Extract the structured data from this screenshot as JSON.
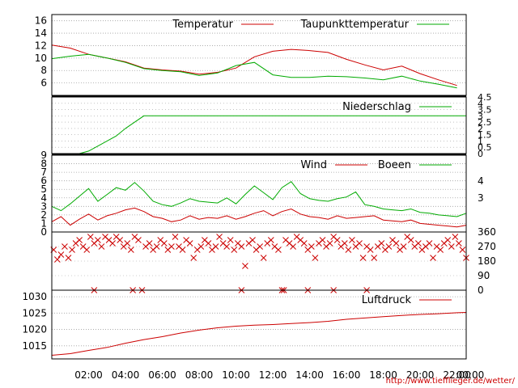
{
  "colors": {
    "red": "#cc0000",
    "green": "#00aa00",
    "frame": "#000000",
    "grid": "#a0a0a0"
  },
  "credit": "http://www.tiefflieger.de/wetter/",
  "x_axis": {
    "labels": [
      "02:00",
      "04:00",
      "06:00",
      "08:00",
      "10:00",
      "12:00",
      "14:00",
      "16:00",
      "18:00",
      "20:00",
      "22:00",
      "00:00"
    ]
  },
  "chart_data": [
    {
      "type": "line",
      "panel": "temperature",
      "ylim": [
        4,
        17
      ],
      "y_ticks": [
        "16",
        "14",
        "12",
        "10",
        "8",
        "6"
      ],
      "x_unit": "hours",
      "x": [
        0,
        1,
        2,
        3,
        4,
        5,
        6,
        7,
        8,
        9,
        10,
        11,
        12,
        13,
        14,
        15,
        16,
        17,
        18,
        19,
        20,
        21,
        22
      ],
      "series": [
        {
          "name": "Temperatur",
          "color": "red",
          "values": [
            12.1,
            11.6,
            10.6,
            10.0,
            9.4,
            8.4,
            8.1,
            7.9,
            7.4,
            7.7,
            8.4,
            10.2,
            11.1,
            11.4,
            11.2,
            10.9,
            9.8,
            8.9,
            8.1,
            8.7,
            7.5,
            6.5,
            5.6
          ]
        },
        {
          "name": "Taupunkttemperatur",
          "color": "green",
          "values": [
            9.9,
            10.3,
            10.6,
            10.0,
            9.3,
            8.3,
            8.0,
            7.8,
            7.2,
            7.6,
            8.8,
            9.3,
            7.3,
            6.9,
            6.9,
            7.1,
            7.0,
            6.8,
            6.5,
            7.1,
            6.3,
            5.8,
            5.2
          ]
        }
      ]
    },
    {
      "type": "line",
      "panel": "precipitation",
      "ylim": [
        0,
        4.5
      ],
      "y_ticks": [
        "4.5",
        "4",
        "3.5",
        "3",
        "2.5",
        "2",
        "1.5",
        "1",
        "0.5",
        "0"
      ],
      "x": [
        0,
        1.5,
        2,
        2.5,
        3,
        3.5,
        4,
        4.5,
        5,
        22.5
      ],
      "series": [
        {
          "name": "Niederschlag",
          "color": "green",
          "values": [
            0,
            0,
            0.2,
            0.6,
            1.0,
            1.4,
            2.0,
            2.5,
            3.0,
            3.0
          ]
        }
      ]
    },
    {
      "type": "line",
      "panel": "wind",
      "ylim": [
        0,
        9
      ],
      "y_ticks": [
        "9",
        "8",
        "7",
        "6",
        "5",
        "4",
        "3",
        "2",
        "1",
        "0"
      ],
      "y_ticks_right": [
        "4",
        "3"
      ],
      "x": [
        0,
        0.5,
        1,
        1.5,
        2,
        2.5,
        3,
        3.5,
        4,
        4.5,
        5,
        5.5,
        6,
        6.5,
        7,
        7.5,
        8,
        8.5,
        9,
        9.5,
        10,
        10.5,
        11,
        11.5,
        12,
        12.5,
        13,
        13.5,
        14,
        14.5,
        15,
        15.5,
        16,
        16.5,
        17,
        17.5,
        18,
        18.5,
        19,
        19.5,
        20,
        20.5,
        21,
        21.5,
        22,
        22.5
      ],
      "series": [
        {
          "name": "Wind",
          "color": "red",
          "values": [
            1.2,
            1.8,
            0.8,
            1.5,
            2.1,
            1.4,
            1.9,
            2.2,
            2.6,
            2.8,
            2.4,
            1.8,
            1.6,
            1.2,
            1.4,
            1.9,
            1.5,
            1.7,
            1.6,
            1.9,
            1.5,
            1.8,
            2.2,
            2.5,
            1.9,
            2.4,
            2.7,
            2.1,
            1.8,
            1.7,
            1.5,
            1.9,
            1.6,
            1.7,
            1.8,
            1.9,
            1.4,
            1.3,
            1.2,
            1.4,
            1.0,
            0.9,
            0.8,
            0.7,
            0.6,
            0.8
          ]
        },
        {
          "name": "Boeen",
          "color": "green",
          "values": [
            3.0,
            2.5,
            3.3,
            4.2,
            5.1,
            3.6,
            4.4,
            5.2,
            4.9,
            5.8,
            4.8,
            3.6,
            3.2,
            3.0,
            3.4,
            3.9,
            3.6,
            3.5,
            3.4,
            4.0,
            3.3,
            4.4,
            5.4,
            4.6,
            3.8,
            5.2,
            5.9,
            4.5,
            3.9,
            3.7,
            3.6,
            3.9,
            4.1,
            4.7,
            3.2,
            3.0,
            2.7,
            2.6,
            2.5,
            2.7,
            2.3,
            2.2,
            2.0,
            1.9,
            1.8,
            2.2
          ]
        }
      ]
    },
    {
      "type": "scatter",
      "panel": "wind-direction",
      "ylim": [
        0,
        360
      ],
      "y_ticks": [
        "360",
        "270",
        "180",
        "90",
        "0"
      ],
      "marker": "x",
      "series": [
        {
          "name": "",
          "color": "red",
          "points": [
            [
              0.1,
              250
            ],
            [
              0.3,
              190
            ],
            [
              0.5,
              220
            ],
            [
              0.7,
              270
            ],
            [
              0.9,
              200
            ],
            [
              1.1,
              250
            ],
            [
              1.3,
              290
            ],
            [
              1.5,
              310
            ],
            [
              1.7,
              270
            ],
            [
              1.9,
              250
            ],
            [
              2.1,
              330
            ],
            [
              2.3,
              290
            ],
            [
              2.5,
              310
            ],
            [
              2.7,
              270
            ],
            [
              2.9,
              330
            ],
            [
              3.1,
              310
            ],
            [
              3.3,
              290
            ],
            [
              3.5,
              330
            ],
            [
              3.7,
              310
            ],
            [
              3.9,
              270
            ],
            [
              4.1,
              290
            ],
            [
              4.3,
              250
            ],
            [
              4.5,
              330
            ],
            [
              4.7,
              310
            ],
            [
              4.9,
              0
            ],
            [
              5.1,
              270
            ],
            [
              5.3,
              290
            ],
            [
              5.5,
              250
            ],
            [
              5.7,
              270
            ],
            [
              5.9,
              310
            ],
            [
              6.1,
              290
            ],
            [
              6.3,
              250
            ],
            [
              6.5,
              270
            ],
            [
              6.7,
              330
            ],
            [
              6.9,
              270
            ],
            [
              7.1,
              250
            ],
            [
              7.3,
              310
            ],
            [
              7.5,
              290
            ],
            [
              7.7,
              200
            ],
            [
              7.9,
              250
            ],
            [
              8.1,
              270
            ],
            [
              8.3,
              310
            ],
            [
              8.5,
              290
            ],
            [
              8.7,
              250
            ],
            [
              8.9,
              270
            ],
            [
              9.1,
              330
            ],
            [
              9.3,
              290
            ],
            [
              9.5,
              270
            ],
            [
              9.7,
              310
            ],
            [
              9.9,
              250
            ],
            [
              10.1,
              290
            ],
            [
              10.3,
              270
            ],
            [
              10.5,
              150
            ],
            [
              10.7,
              290
            ],
            [
              10.9,
              310
            ],
            [
              11.1,
              250
            ],
            [
              11.3,
              270
            ],
            [
              11.5,
              200
            ],
            [
              11.7,
              290
            ],
            [
              11.9,
              310
            ],
            [
              12.1,
              270
            ],
            [
              12.3,
              250
            ],
            [
              12.5,
              0
            ],
            [
              12.7,
              310
            ],
            [
              12.9,
              290
            ],
            [
              13.1,
              270
            ],
            [
              13.3,
              330
            ],
            [
              13.5,
              310
            ],
            [
              13.7,
              290
            ],
            [
              13.9,
              250
            ],
            [
              14.1,
              270
            ],
            [
              14.3,
              200
            ],
            [
              14.5,
              290
            ],
            [
              14.7,
              310
            ],
            [
              14.9,
              270
            ],
            [
              15.1,
              290
            ],
            [
              15.3,
              330
            ],
            [
              15.5,
              310
            ],
            [
              15.7,
              270
            ],
            [
              15.9,
              290
            ],
            [
              16.1,
              250
            ],
            [
              16.3,
              310
            ],
            [
              16.5,
              270
            ],
            [
              16.7,
              290
            ],
            [
              16.9,
              200
            ],
            [
              17.1,
              270
            ],
            [
              17.3,
              250
            ],
            [
              17.5,
              200
            ],
            [
              17.7,
              270
            ],
            [
              17.9,
              290
            ],
            [
              18.1,
              250
            ],
            [
              18.3,
              270
            ],
            [
              18.5,
              310
            ],
            [
              18.7,
              290
            ],
            [
              18.9,
              250
            ],
            [
              19.1,
              270
            ],
            [
              19.3,
              330
            ],
            [
              19.5,
              310
            ],
            [
              19.7,
              270
            ],
            [
              19.9,
              290
            ],
            [
              20.1,
              250
            ],
            [
              20.3,
              270
            ],
            [
              20.5,
              290
            ],
            [
              20.7,
              200
            ],
            [
              20.9,
              270
            ],
            [
              21.1,
              250
            ],
            [
              21.3,
              290
            ],
            [
              21.5,
              310
            ],
            [
              21.7,
              270
            ],
            [
              21.9,
              330
            ],
            [
              22.1,
              290
            ],
            [
              22.3,
              250
            ],
            [
              22.5,
              200
            ],
            [
              2.3,
              0
            ],
            [
              4.4,
              0
            ],
            [
              10.3,
              0
            ],
            [
              12.6,
              0
            ],
            [
              13.9,
              0
            ],
            [
              15.3,
              0
            ],
            [
              17.1,
              0
            ]
          ]
        }
      ]
    },
    {
      "type": "line",
      "panel": "pressure",
      "ylim": [
        1011,
        1032
      ],
      "y_ticks": [
        "1030",
        "1025",
        "1020",
        "1015"
      ],
      "x": [
        0,
        1,
        2,
        3,
        4,
        5,
        6,
        7,
        8,
        9,
        10,
        11,
        12,
        13,
        14,
        15,
        16,
        17,
        18,
        19,
        20,
        21,
        22,
        22.5
      ],
      "series": [
        {
          "name": "Luftdruck",
          "color": "red",
          "values": [
            1012.1,
            1012.6,
            1013.6,
            1014.5,
            1015.8,
            1016.9,
            1017.8,
            1018.9,
            1019.8,
            1020.5,
            1021.0,
            1021.3,
            1021.5,
            1021.8,
            1022.1,
            1022.5,
            1023.1,
            1023.5,
            1023.9,
            1024.3,
            1024.6,
            1024.8,
            1025.1,
            1025.2
          ]
        }
      ]
    }
  ]
}
